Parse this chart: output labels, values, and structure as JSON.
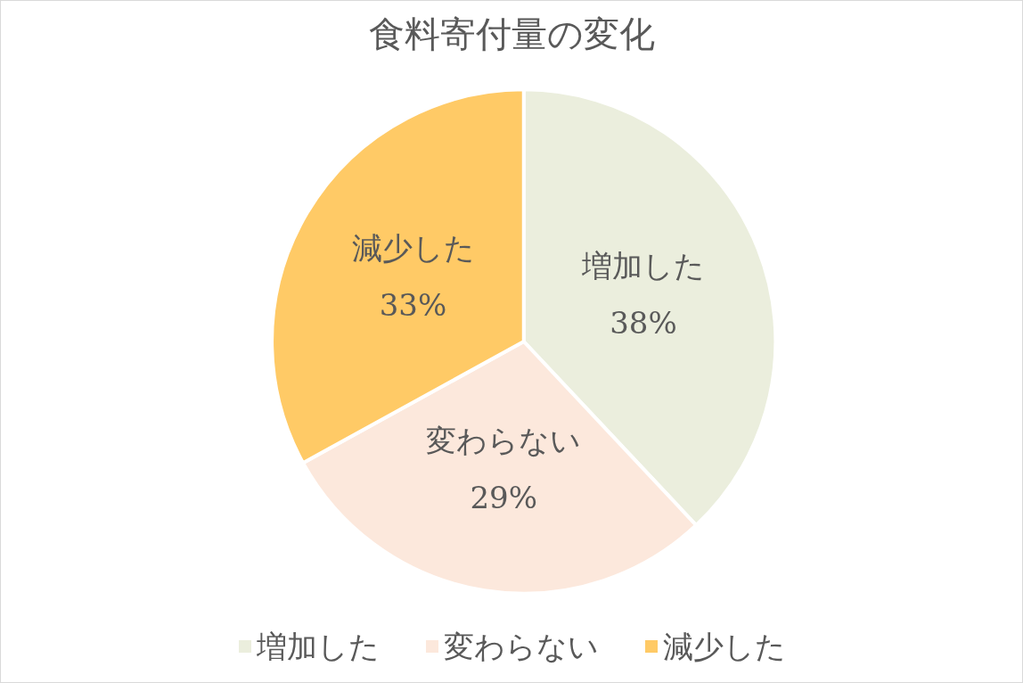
{
  "chart_data": {
    "type": "pie",
    "title": "食料寄付量の変化",
    "categories": [
      "増加した",
      "変わらない",
      "減少した"
    ],
    "values": [
      38,
      29,
      33
    ],
    "colors": [
      "#ebeedd",
      "#fce8dc",
      "#ffca66"
    ],
    "value_labels": [
      "38%",
      "29%",
      "33%"
    ],
    "legend": "bottom"
  }
}
